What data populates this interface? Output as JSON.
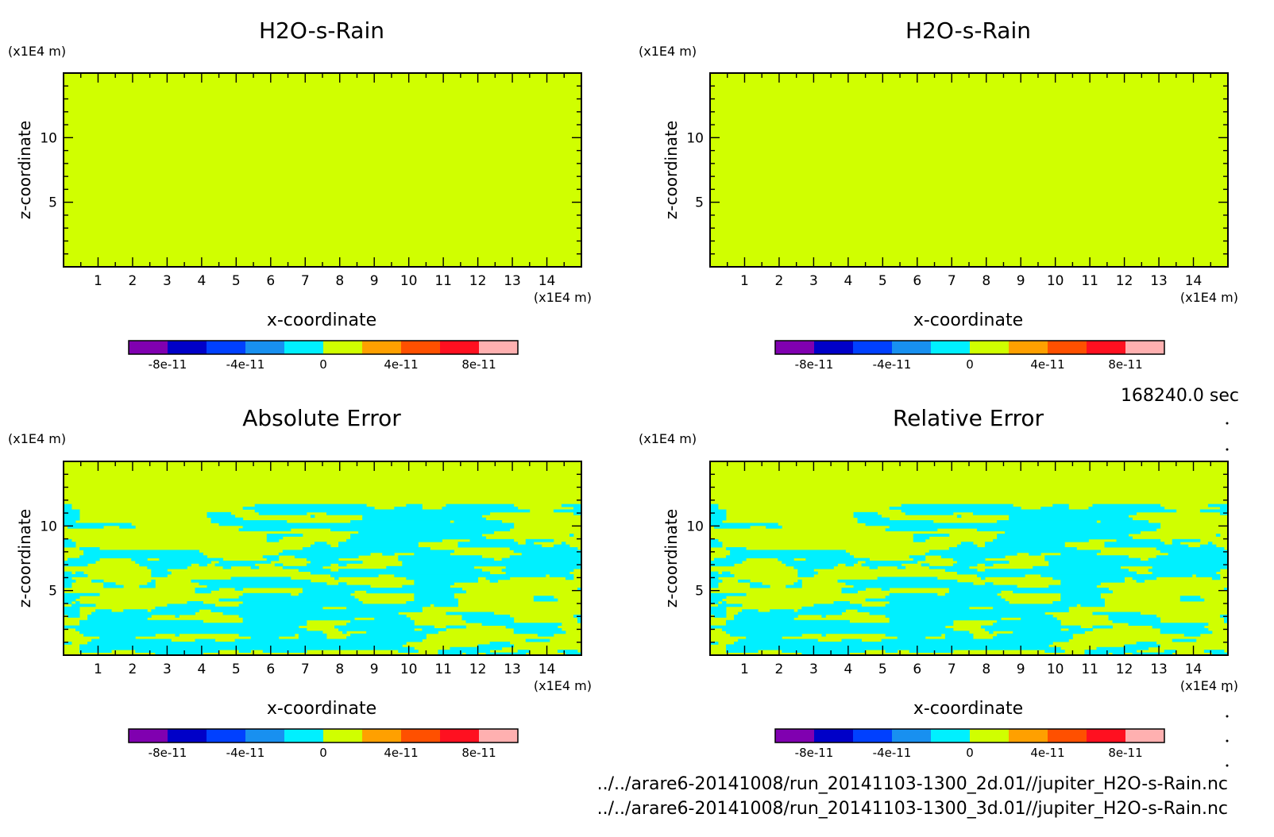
{
  "figure": {
    "time_label": "168240.0 sec",
    "files": [
      "../../arare6-20141008/run_20141103-1300_2d.01//jupiter_H2O-s-Rain.nc",
      "../../arare6-20141008/run_20141103-1300_3d.01//jupiter_H2O-s-Rain.nc"
    ]
  },
  "colorbar": {
    "colors": [
      "#8000b0",
      "#0000c8",
      "#0040ff",
      "#1890f0",
      "#00f0ff",
      "#d0ff00",
      "#ffa000",
      "#ff5000",
      "#ff1020",
      "#ffb0b0"
    ],
    "tick_labels": [
      "-8e-11",
      "-4e-11",
      "0",
      "4e-11",
      "8e-11"
    ],
    "tick_values": [
      -8e-11,
      -4e-11,
      0,
      4e-11,
      8e-11
    ],
    "range": [
      -1e-10,
      1e-10
    ]
  },
  "chart_data": [
    {
      "type": "heatmap",
      "title": "H2O-s-Rain",
      "xlabel": "x-coordinate",
      "ylabel": "z-coordinate",
      "x_unit": "(x1E4 m)",
      "y_unit": "(x1E4 m)",
      "xlim": [
        0,
        15
      ],
      "ylim": [
        0,
        15
      ],
      "x_ticks": [
        1,
        2,
        3,
        4,
        5,
        6,
        7,
        8,
        9,
        10,
        11,
        12,
        13,
        14
      ],
      "y_ticks": [
        5,
        10
      ],
      "field": "uniform",
      "value": 0
    },
    {
      "type": "heatmap",
      "title": "H2O-s-Rain",
      "xlabel": "x-coordinate",
      "ylabel": "z-coordinate",
      "x_unit": "(x1E4 m)",
      "y_unit": "(x1E4 m)",
      "xlim": [
        0,
        15
      ],
      "ylim": [
        0,
        15
      ],
      "x_ticks": [
        1,
        2,
        3,
        4,
        5,
        6,
        7,
        8,
        9,
        10,
        11,
        12,
        13,
        14
      ],
      "y_ticks": [
        5,
        10
      ],
      "field": "uniform",
      "value": 0
    },
    {
      "type": "heatmap",
      "title": "Absolute Error",
      "xlabel": "x-coordinate",
      "ylabel": "z-coordinate",
      "x_unit": "(x1E4 m)",
      "y_unit": "(x1E4 m)",
      "xlim": [
        0,
        15
      ],
      "ylim": [
        0,
        15
      ],
      "x_ticks": [
        1,
        2,
        3,
        4,
        5,
        6,
        7,
        8,
        9,
        10,
        11,
        12,
        13,
        14
      ],
      "y_ticks": [
        5,
        10
      ],
      "field": "noisy",
      "noise_top": 11.7,
      "levels": [
        -1e-11,
        0
      ]
    },
    {
      "type": "heatmap",
      "title": "Relative Error",
      "xlabel": "x-coordinate",
      "ylabel": "z-coordinate",
      "x_unit": "(x1E4 m)",
      "y_unit": "(x1E4 m)",
      "xlim": [
        0,
        15
      ],
      "ylim": [
        0,
        15
      ],
      "x_ticks": [
        1,
        2,
        3,
        4,
        5,
        6,
        7,
        8,
        9,
        10,
        11,
        12,
        13,
        14
      ],
      "y_ticks": [
        5,
        10
      ],
      "field": "noisy",
      "noise_top": 11.7,
      "levels": [
        -1e-11,
        0
      ]
    }
  ]
}
